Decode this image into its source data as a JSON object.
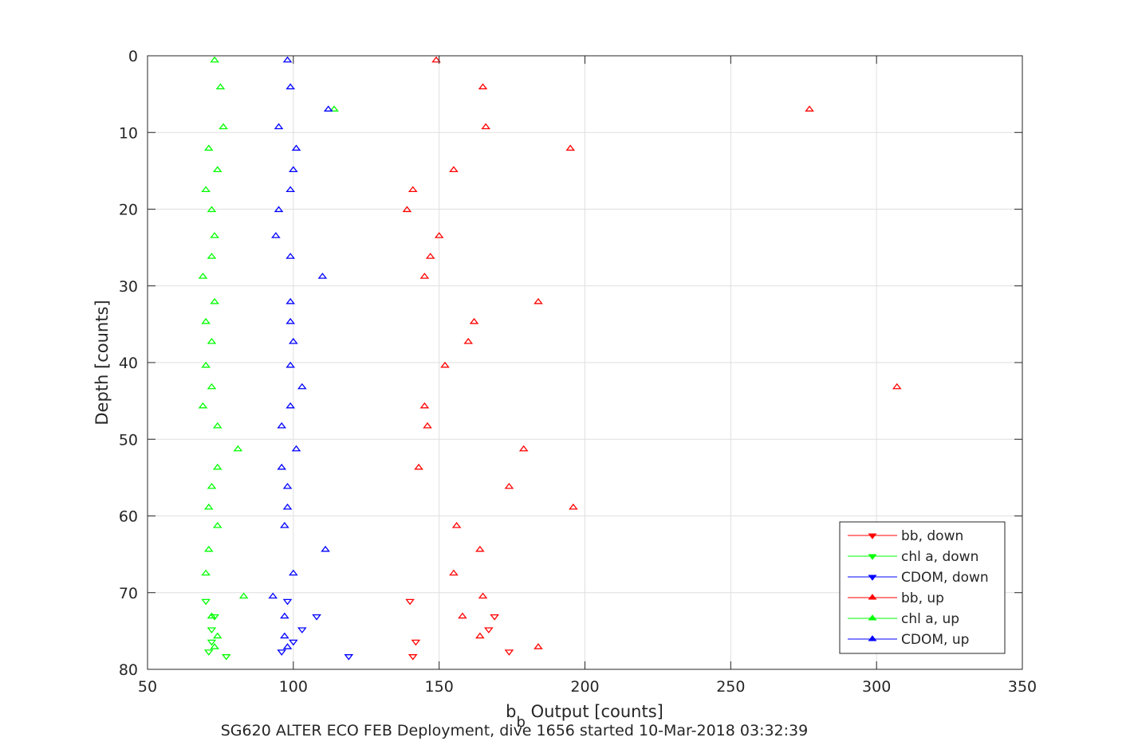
{
  "chart_data": {
    "type": "scatter",
    "title": "",
    "xlabel_main": "b",
    "xlabel_sub": "b",
    "xlabel_rest": " Output [counts]",
    "ylabel": "Depth [counts]",
    "caption": "SG620 ALTER ECO FEB Deployment, dive 1656 started 10-Mar-2018 03:32:39",
    "xlim": [
      50,
      350
    ],
    "ylim": [
      80,
      0
    ],
    "y_reversed": true,
    "grid": true,
    "legend_position": "bottom-right",
    "xticks": [
      "50",
      "100",
      "150",
      "200",
      "250",
      "300",
      "350"
    ],
    "yticks": [
      "0",
      "10",
      "20",
      "30",
      "40",
      "50",
      "60",
      "70",
      "80"
    ],
    "series": [
      {
        "name": "bb, down",
        "color": "#ff0000",
        "marker": "triangle-down",
        "points": [
          [
            140,
            71.1
          ],
          [
            169,
            73.1
          ],
          [
            167,
            74.8
          ],
          [
            142,
            76.4
          ],
          [
            174,
            77.7
          ],
          [
            141,
            78.3
          ]
        ]
      },
      {
        "name": "chl a, down",
        "color": "#00ff00",
        "marker": "triangle-down",
        "points": [
          [
            70,
            71.1
          ],
          [
            73,
            73.1
          ],
          [
            72,
            74.8
          ],
          [
            72,
            76.4
          ],
          [
            71,
            77.7
          ],
          [
            77,
            78.3
          ]
        ]
      },
      {
        "name": "CDOM, down",
        "color": "#0000ff",
        "marker": "triangle-down",
        "points": [
          [
            98,
            71.1
          ],
          [
            108,
            73.1
          ],
          [
            103,
            74.8
          ],
          [
            100,
            76.4
          ],
          [
            96,
            77.7
          ],
          [
            119,
            78.3
          ]
        ]
      },
      {
        "name": "bb, up",
        "color": "#ff0000",
        "marker": "triangle-up",
        "points": [
          [
            149,
            0.6
          ],
          [
            165,
            4.1
          ],
          [
            277,
            7
          ],
          [
            166,
            9.3
          ],
          [
            195,
            12.1
          ],
          [
            155,
            14.9
          ],
          [
            141,
            17.5
          ],
          [
            139,
            20.1
          ],
          [
            150,
            23.5
          ],
          [
            147,
            26.2
          ],
          [
            145,
            28.8
          ],
          [
            184,
            32.1
          ],
          [
            162,
            34.7
          ],
          [
            160,
            37.3
          ],
          [
            152,
            40.4
          ],
          [
            307,
            43.2
          ],
          [
            145,
            45.7
          ],
          [
            146,
            48.3
          ],
          [
            179,
            51.3
          ],
          [
            143,
            53.7
          ],
          [
            174,
            56.2
          ],
          [
            196,
            58.9
          ],
          [
            156,
            61.3
          ],
          [
            164,
            64.4
          ],
          [
            155,
            67.5
          ],
          [
            165,
            70.5
          ],
          [
            158,
            73.1
          ],
          [
            164,
            75.7
          ],
          [
            184,
            77.1
          ]
        ]
      },
      {
        "name": "chl a, up",
        "color": "#00ff00",
        "marker": "triangle-up",
        "points": [
          [
            73,
            0.6
          ],
          [
            75,
            4.1
          ],
          [
            114,
            7
          ],
          [
            76,
            9.3
          ],
          [
            71,
            12.1
          ],
          [
            74,
            14.9
          ],
          [
            70,
            17.5
          ],
          [
            72,
            20.1
          ],
          [
            73,
            23.5
          ],
          [
            72,
            26.2
          ],
          [
            69,
            28.8
          ],
          [
            73,
            32.1
          ],
          [
            70,
            34.7
          ],
          [
            72,
            37.3
          ],
          [
            70,
            40.4
          ],
          [
            72,
            43.2
          ],
          [
            69,
            45.7
          ],
          [
            74,
            48.3
          ],
          [
            81,
            51.3
          ],
          [
            74,
            53.7
          ],
          [
            72,
            56.2
          ],
          [
            71,
            58.9
          ],
          [
            74,
            61.3
          ],
          [
            71,
            64.4
          ],
          [
            70,
            67.5
          ],
          [
            83,
            70.5
          ],
          [
            72,
            73.1
          ],
          [
            74,
            75.7
          ],
          [
            73,
            77.1
          ]
        ]
      },
      {
        "name": "CDOM, up",
        "color": "#0000ff",
        "marker": "triangle-up",
        "points": [
          [
            98,
            0.6
          ],
          [
            99,
            4.1
          ],
          [
            112,
            7
          ],
          [
            95,
            9.3
          ],
          [
            101,
            12.1
          ],
          [
            100,
            14.9
          ],
          [
            99,
            17.5
          ],
          [
            95,
            20.1
          ],
          [
            94,
            23.5
          ],
          [
            99,
            26.2
          ],
          [
            110,
            28.8
          ],
          [
            99,
            32.1
          ],
          [
            99,
            34.7
          ],
          [
            100,
            37.3
          ],
          [
            99,
            40.4
          ],
          [
            103,
            43.2
          ],
          [
            99,
            45.7
          ],
          [
            96,
            48.3
          ],
          [
            101,
            51.3
          ],
          [
            96,
            53.7
          ],
          [
            98,
            56.2
          ],
          [
            98,
            58.9
          ],
          [
            97,
            61.3
          ],
          [
            111,
            64.4
          ],
          [
            100,
            67.5
          ],
          [
            93,
            70.5
          ],
          [
            97,
            73.1
          ],
          [
            97,
            75.7
          ],
          [
            98,
            77.1
          ]
        ]
      }
    ]
  }
}
